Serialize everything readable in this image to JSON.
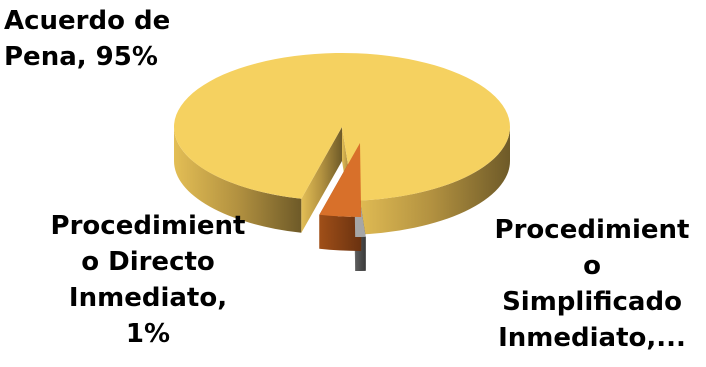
{
  "chart_data": {
    "type": "pie",
    "style": "3d-exploded",
    "legend": "none",
    "slices": [
      {
        "name": "Acuerdo de Pena",
        "value": 95,
        "label_lines": [
          "Acuerdo de",
          "Pena, 95%"
        ],
        "color": "#F5D160"
      },
      {
        "name": "Procedimiento Directo Inmediato",
        "value": 1,
        "label_lines": [
          "Procedimient",
          "o Directo",
          "Inmediato,",
          "1%"
        ],
        "color": "#A6A6A6"
      },
      {
        "name": "Procedimiento Simplificado Inmediato",
        "value": 4,
        "label_lines": [
          "Procedimient",
          "o",
          "Simplificado",
          "Inmediato,..."
        ],
        "color": "#D8702A"
      }
    ]
  }
}
